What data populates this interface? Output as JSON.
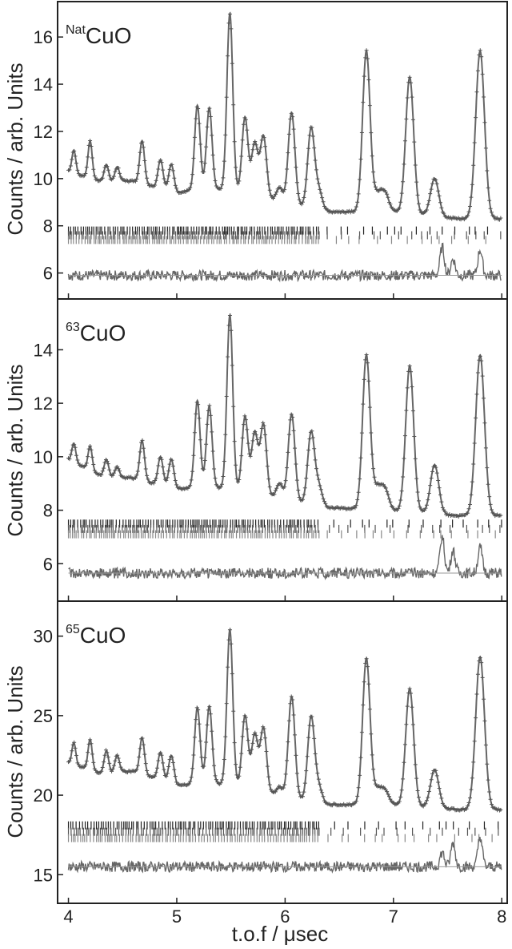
{
  "figure": {
    "xlabel": "t.o.f / μsec",
    "ylabel": "Counts / arb. Units"
  },
  "chart_data": [
    {
      "type": "line",
      "title": "CuO",
      "title_sup": "Nat",
      "xlim": [
        3.9,
        8.05
      ],
      "ylim": [
        4.9,
        17.5
      ],
      "xticks": [
        4,
        5,
        6,
        7,
        8
      ],
      "yticks": [
        6,
        8,
        10,
        12,
        14,
        16
      ],
      "baseline": 8.6,
      "background": {
        "x": [
          4.0,
          4.3,
          4.6,
          5.0,
          5.3,
          5.6,
          6.0,
          6.4,
          7.0,
          7.6,
          8.0
        ],
        "y": [
          10.3,
          9.9,
          9.9,
          9.4,
          9.6,
          9.4,
          9.0,
          8.6,
          8.6,
          8.3,
          8.3
        ]
      },
      "peaks": {
        "x": [
          4.05,
          4.2,
          4.35,
          4.45,
          4.68,
          4.85,
          4.95,
          5.19,
          5.3,
          5.49,
          5.63,
          5.72,
          5.8,
          5.95,
          6.06,
          6.24,
          6.31,
          6.75,
          6.85,
          6.92,
          7.15,
          7.38,
          7.8
        ],
        "y": [
          11.2,
          11.6,
          10.6,
          10.5,
          11.6,
          10.8,
          10.6,
          13.1,
          13.0,
          17.0,
          12.6,
          11.5,
          11.8,
          9.6,
          12.8,
          12.1,
          9.5,
          15.4,
          9.3,
          9.4,
          14.3,
          10.0,
          15.4
        ]
      },
      "reflection_markers_y": [
        7.8,
        7.6,
        7.4
      ],
      "difference_offset": 5.9,
      "difference_features": {
        "x": [
          7.45,
          7.55,
          7.8
        ],
        "y": [
          7.1,
          6.6,
          7.0
        ]
      }
    },
    {
      "type": "line",
      "title": "CuO",
      "title_sup": "63",
      "xlim": [
        3.9,
        8.05
      ],
      "ylim": [
        4.6,
        15.9
      ],
      "xticks": [
        4,
        5,
        6,
        7,
        8
      ],
      "yticks": [
        6,
        8,
        10,
        12,
        14
      ],
      "baseline": 7.7,
      "background": {
        "x": [
          4.0,
          4.3,
          4.6,
          5.0,
          5.3,
          5.6,
          6.0,
          6.4,
          7.0,
          7.6,
          8.0
        ],
        "y": [
          9.9,
          9.3,
          9.2,
          8.8,
          8.9,
          8.7,
          8.4,
          8.1,
          8.0,
          7.8,
          7.8
        ]
      },
      "peaks": {
        "x": [
          4.05,
          4.2,
          4.35,
          4.45,
          4.68,
          4.85,
          4.95,
          5.19,
          5.3,
          5.49,
          5.63,
          5.72,
          5.8,
          5.95,
          6.06,
          6.24,
          6.31,
          6.75,
          6.85,
          6.92,
          7.15,
          7.38,
          7.8
        ],
        "y": [
          10.5,
          10.4,
          9.9,
          9.6,
          10.6,
          10.0,
          9.9,
          12.1,
          11.9,
          15.3,
          11.5,
          10.9,
          11.2,
          9.0,
          11.6,
          10.9,
          8.9,
          13.8,
          8.8,
          8.8,
          13.4,
          9.7,
          13.8
        ]
      },
      "reflection_markers_y": [
        7.5,
        7.3,
        7.1
      ],
      "difference_offset": 5.65,
      "difference_features": {
        "x": [
          7.45,
          7.55,
          7.8
        ],
        "y": [
          7.0,
          6.5,
          6.6
        ]
      }
    },
    {
      "type": "line",
      "title": "CuO",
      "title_sup": "65",
      "xlim": [
        3.9,
        8.05
      ],
      "ylim": [
        13.2,
        32.2
      ],
      "xticks": [
        4,
        5,
        6,
        7,
        8
      ],
      "yticks": [
        15,
        20,
        25,
        30
      ],
      "baseline": 19.0,
      "background": {
        "x": [
          4.0,
          4.3,
          4.6,
          5.0,
          5.3,
          5.6,
          6.0,
          6.4,
          7.0,
          7.6,
          8.0
        ],
        "y": [
          22.0,
          21.4,
          21.5,
          20.6,
          20.8,
          20.5,
          19.9,
          19.4,
          19.4,
          19.1,
          19.1
        ]
      },
      "peaks": {
        "x": [
          4.05,
          4.2,
          4.35,
          4.45,
          4.68,
          4.85,
          4.95,
          5.19,
          5.3,
          5.49,
          5.63,
          5.72,
          5.8,
          5.95,
          6.06,
          6.24,
          6.31,
          6.75,
          6.85,
          6.92,
          7.15,
          7.38,
          7.8
        ],
        "y": [
          23.3,
          23.5,
          22.8,
          22.5,
          23.6,
          22.7,
          22.5,
          25.5,
          25.6,
          30.4,
          25.0,
          23.8,
          24.2,
          20.5,
          26.2,
          24.9,
          20.5,
          28.6,
          20.3,
          20.3,
          26.7,
          21.6,
          28.7
        ]
      },
      "reflection_markers_y": [
        18.1,
        17.7,
        17.3
      ],
      "difference_offset": 15.5,
      "difference_features": {
        "x": [
          7.45,
          7.55,
          7.8
        ],
        "y": [
          16.4,
          17.0,
          17.4
        ]
      }
    }
  ]
}
